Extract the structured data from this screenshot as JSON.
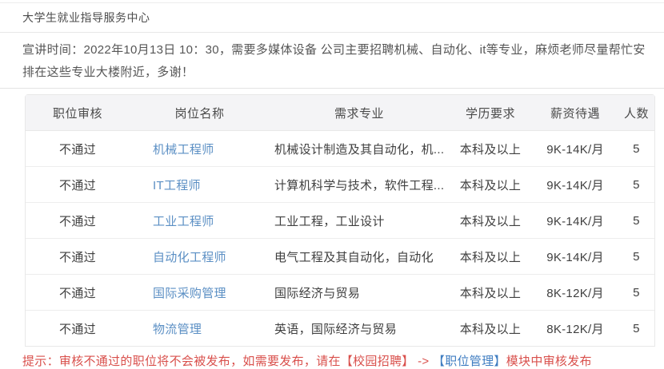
{
  "page": {
    "title": "大学生就业指导服务中心"
  },
  "notice": {
    "text": "宣讲时间：2022年10月13日 10：30，需要多媒体设备 公司主要招聘机械、自动化、it等专业，麻烦老师尽量帮忙安排在这些专业大楼附近，多谢！"
  },
  "table": {
    "columns": [
      {
        "key": "review",
        "label": "职位审核"
      },
      {
        "key": "name",
        "label": "岗位名称"
      },
      {
        "key": "majors",
        "label": "需求专业"
      },
      {
        "key": "degree",
        "label": "学历要求"
      },
      {
        "key": "salary",
        "label": "薪资待遇"
      },
      {
        "key": "count",
        "label": "人数"
      }
    ],
    "rows": [
      {
        "review": "不通过",
        "name": "机械工程师",
        "majors": "机械设计制造及其自动化，机...",
        "degree": "本科及以上",
        "salary": "9K-14K/月",
        "count": "5"
      },
      {
        "review": "不通过",
        "name": "IT工程师",
        "majors": "计算机科学与技术，软件工程...",
        "degree": "本科及以上",
        "salary": "9K-14K/月",
        "count": "5"
      },
      {
        "review": "不通过",
        "name": "工业工程师",
        "majors": "工业工程，工业设计",
        "degree": "本科及以上",
        "salary": "9K-14K/月",
        "count": "5"
      },
      {
        "review": "不通过",
        "name": "自动化工程师",
        "majors": "电气工程及其自动化，自动化",
        "degree": "本科及以上",
        "salary": "9K-14K/月",
        "count": "5"
      },
      {
        "review": "不通过",
        "name": "国际采购管理",
        "majors": "国际经济与贸易",
        "degree": "本科及以上",
        "salary": "8K-12K/月",
        "count": "5"
      },
      {
        "review": "不通过",
        "name": "物流管理",
        "majors": "英语，国际经济与贸易",
        "degree": "本科及以上",
        "salary": "8K-12K/月",
        "count": "5"
      }
    ]
  },
  "tip": {
    "prefix": "提示：审核不通过的职位将不会被发布，如需要发布，请在【校园招聘】 -> ",
    "highlight": "【职位管理】",
    "suffix": "模块中审核发布"
  },
  "colors": {
    "link_blue": "#5b8fc4",
    "tip_red": "#d9504c",
    "tip_blue": "#3f7dc1",
    "header_bg": "#f4f4f6"
  }
}
